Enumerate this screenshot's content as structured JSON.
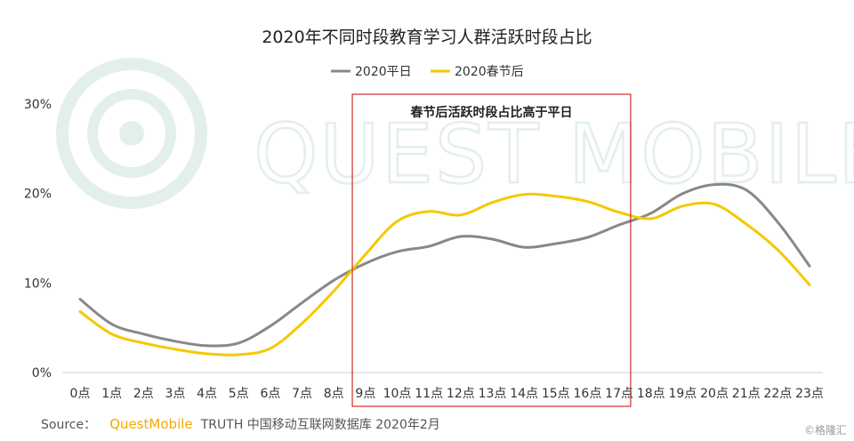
{
  "watermark": {
    "text": "QUEST MOBILE"
  },
  "source": {
    "label": "Source：",
    "brand": "QuestMobile",
    "rest": "TRUTH 中国移动互联网数据库 2020年2月"
  },
  "corner_mark": "©格隆汇",
  "colors": {
    "series_weekday": "#888888",
    "series_festival": "#f5c800",
    "annotation_box": "#cc0000",
    "watermark": "#e3efec"
  },
  "chart_data": {
    "type": "line",
    "title": "2020年不同时段教育学习人群活跃时段占比",
    "xlabel": "",
    "ylabel": "",
    "categories": [
      "0点",
      "1点",
      "2点",
      "3点",
      "4点",
      "5点",
      "6点",
      "7点",
      "8点",
      "9点",
      "10点",
      "11点",
      "12点",
      "13点",
      "14点",
      "15点",
      "16点",
      "17点",
      "18点",
      "19点",
      "20点",
      "21点",
      "22点",
      "23点"
    ],
    "y_ticks": [
      "0%",
      "10%",
      "20%",
      "30%"
    ],
    "ylim": [
      0,
      30
    ],
    "grid": false,
    "legend_position": "top-center",
    "series": [
      {
        "name": "2020平日",
        "color": "#888888",
        "values": [
          8.2,
          5.4,
          4.3,
          3.5,
          3.0,
          3.3,
          5.2,
          7.8,
          10.3,
          12.2,
          13.5,
          14.1,
          15.2,
          14.9,
          14.0,
          14.4,
          15.1,
          16.5,
          17.8,
          20.0,
          21.0,
          20.4,
          16.8,
          11.9
        ]
      },
      {
        "name": "2020春节后",
        "color": "#f5c800",
        "values": [
          6.8,
          4.3,
          3.3,
          2.6,
          2.1,
          2.0,
          2.7,
          5.5,
          9.1,
          13.2,
          16.9,
          18.0,
          17.6,
          19.0,
          19.9,
          19.7,
          19.1,
          17.9,
          17.2,
          18.6,
          18.8,
          16.6,
          13.7,
          9.8
        ]
      }
    ],
    "annotation": {
      "text": "春节后活跃时段占比高于平日",
      "from": "9点",
      "to": "17点"
    }
  }
}
